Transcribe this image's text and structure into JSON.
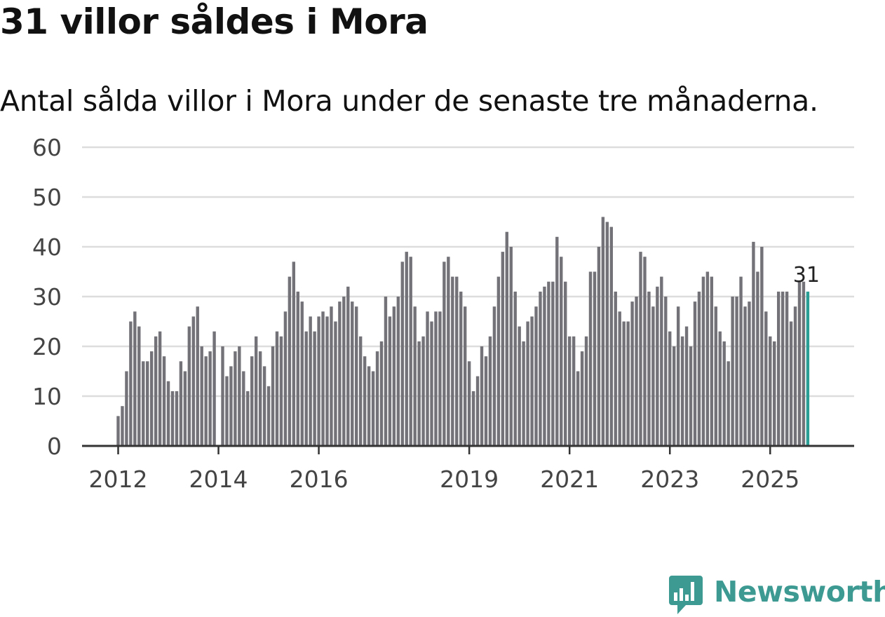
{
  "title": "31 villor såldes i Mora",
  "subtitle": "Antal sålda villor i Mora under de senaste tre månaderna.",
  "brand": {
    "name": "Newsworthy",
    "color": "#3d9a93"
  },
  "colors": {
    "bar": "#737278",
    "highlight": "#2a9d95",
    "grid": "#dddddd",
    "axis": "#333333",
    "text": "#444444"
  },
  "chart_data": {
    "type": "bar",
    "title": "31 villor såldes i Mora",
    "subtitle": "Antal sålda villor i Mora under de senaste tre månaderna.",
    "xlabel": "",
    "ylabel": "",
    "ylim": [
      0,
      60
    ],
    "yticks": [
      0,
      10,
      20,
      30,
      40,
      50,
      60
    ],
    "xtick_labels": [
      {
        "label": "2012",
        "index": 0
      },
      {
        "label": "2014",
        "index": 24
      },
      {
        "label": "2016",
        "index": 48
      },
      {
        "label": "2019",
        "index": 84
      },
      {
        "label": "2021",
        "index": 108
      },
      {
        "label": "2023",
        "index": 132
      },
      {
        "label": "2025",
        "index": 156
      }
    ],
    "last_value_label": "31",
    "highlight_last": true,
    "values": [
      6,
      8,
      15,
      25,
      27,
      24,
      17,
      17,
      19,
      22,
      23,
      18,
      13,
      11,
      11,
      17,
      15,
      24,
      26,
      28,
      20,
      18,
      19,
      23,
      0,
      20,
      14,
      16,
      19,
      20,
      15,
      11,
      18,
      22,
      19,
      16,
      12,
      20,
      23,
      22,
      27,
      34,
      37,
      31,
      29,
      23,
      26,
      23,
      26,
      27,
      26,
      28,
      25,
      29,
      30,
      32,
      29,
      28,
      22,
      18,
      16,
      15,
      19,
      21,
      30,
      26,
      28,
      30,
      37,
      39,
      38,
      28,
      21,
      22,
      27,
      25,
      27,
      27,
      37,
      38,
      34,
      34,
      31,
      28,
      17,
      11,
      14,
      20,
      18,
      22,
      28,
      34,
      39,
      43,
      40,
      31,
      24,
      21,
      25,
      26,
      28,
      31,
      32,
      33,
      33,
      42,
      38,
      33,
      22,
      22,
      15,
      19,
      22,
      35,
      35,
      40,
      46,
      45,
      44,
      31,
      27,
      25,
      25,
      29,
      30,
      39,
      38,
      31,
      28,
      32,
      34,
      30,
      23,
      20,
      28,
      22,
      24,
      20,
      29,
      31,
      34,
      35,
      34,
      28,
      23,
      21,
      17,
      30,
      30,
      34,
      28,
      29,
      41,
      35,
      40,
      27,
      22,
      21,
      31,
      31,
      31,
      25,
      28,
      33,
      33,
      31
    ]
  }
}
